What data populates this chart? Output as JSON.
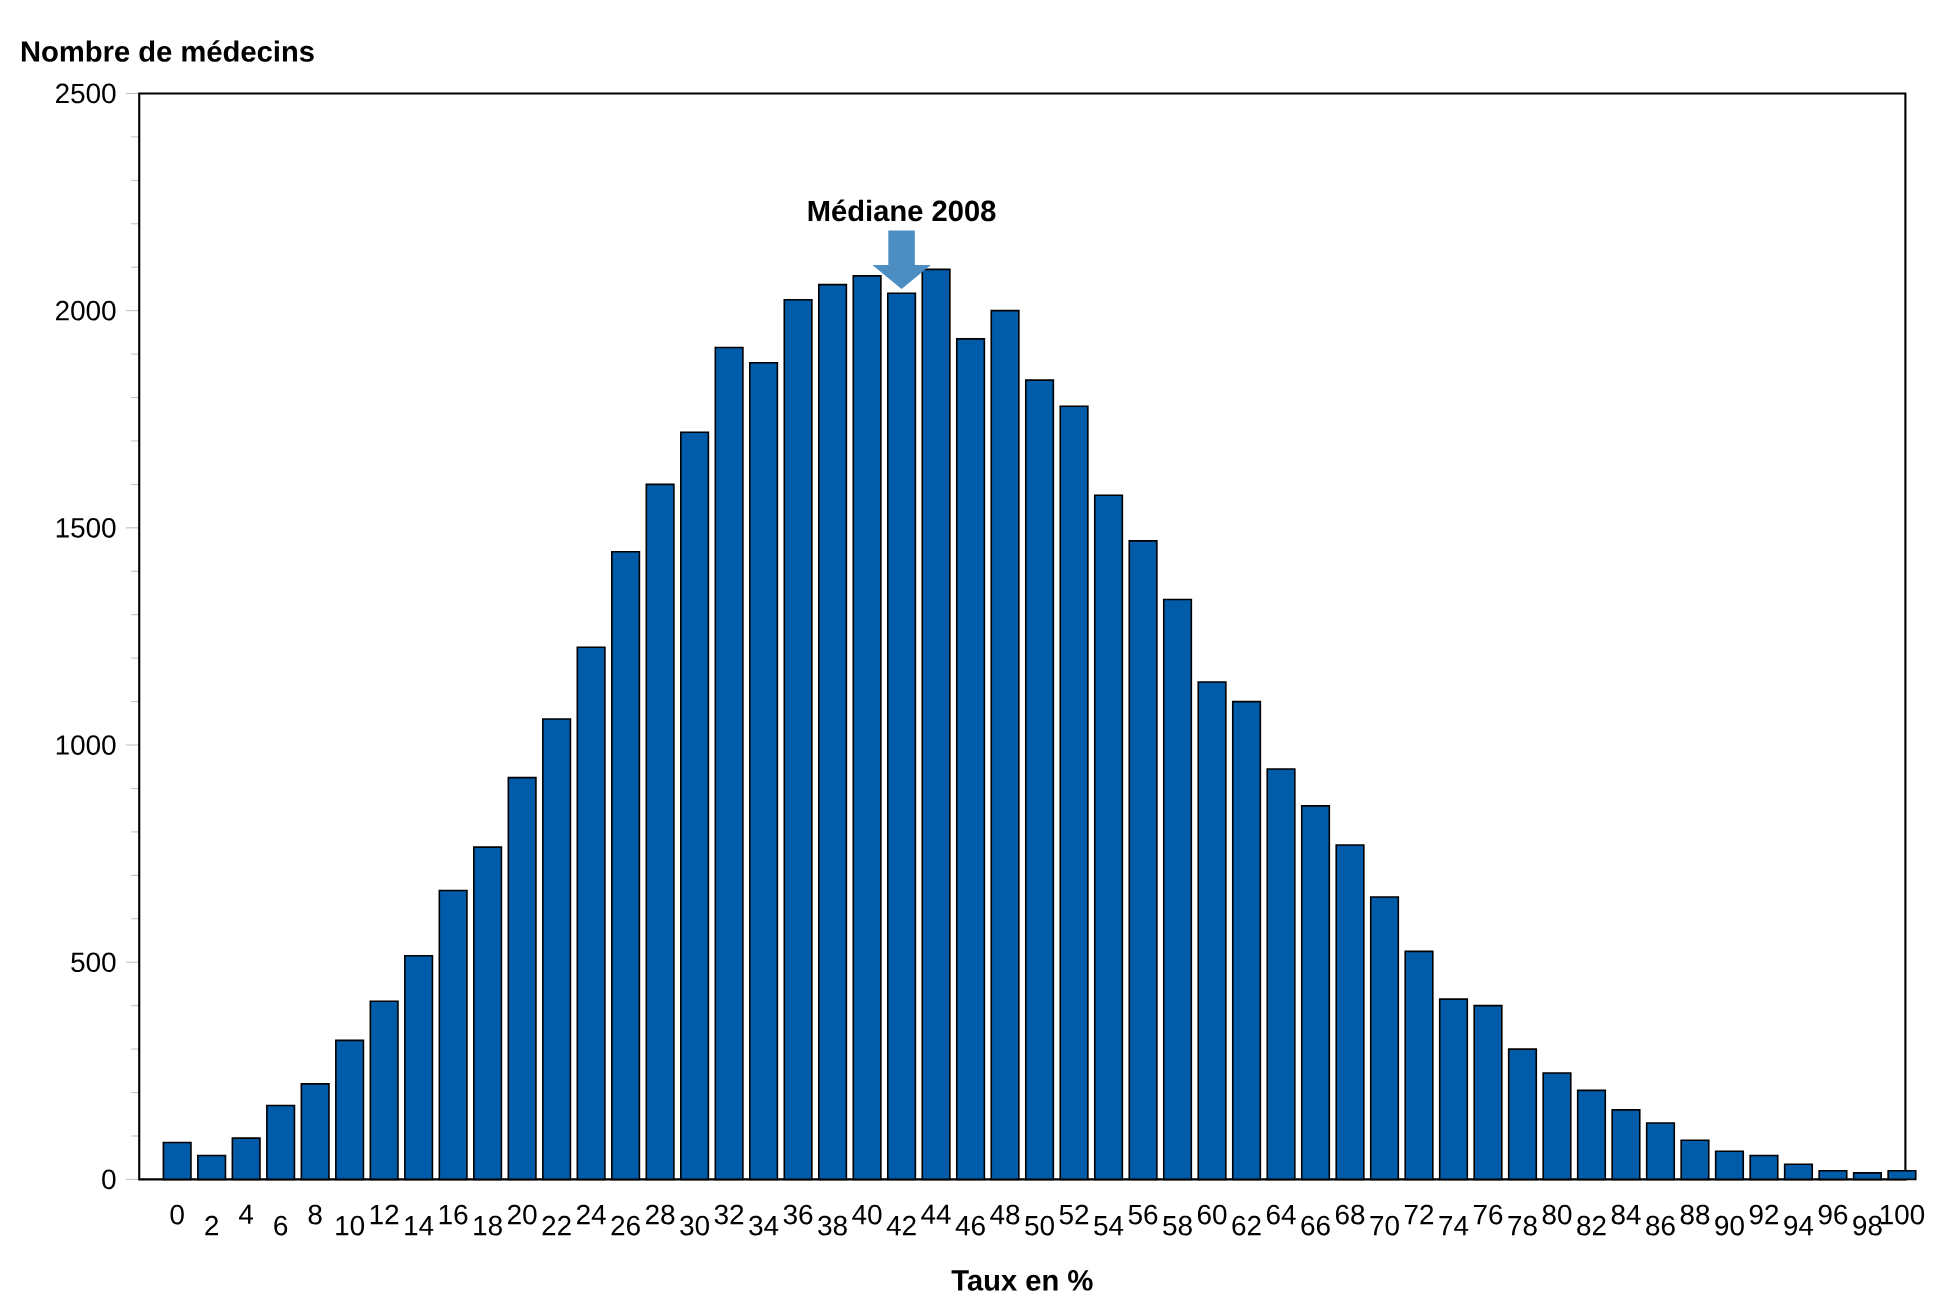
{
  "chart_data": {
    "type": "bar",
    "xlabel": "Taux en %",
    "ylabel": "Nombre de médecins",
    "categories": [
      "0",
      "2",
      "4",
      "6",
      "8",
      "10",
      "12",
      "14",
      "16",
      "18",
      "20",
      "22",
      "24",
      "26",
      "28",
      "30",
      "32",
      "34",
      "36",
      "38",
      "40",
      "42",
      "44",
      "46",
      "48",
      "50",
      "52",
      "54",
      "56",
      "58",
      "60",
      "62",
      "64",
      "66",
      "68",
      "70",
      "72",
      "74",
      "76",
      "78",
      "80",
      "82",
      "84",
      "86",
      "88",
      "90",
      "92",
      "94",
      "96",
      "98",
      "100"
    ],
    "values": [
      85,
      55,
      95,
      170,
      220,
      320,
      410,
      515,
      665,
      765,
      925,
      1060,
      1225,
      1445,
      1600,
      1720,
      1915,
      1880,
      2025,
      2060,
      2080,
      2040,
      2095,
      1935,
      2000,
      1840,
      1780,
      1575,
      1470,
      1335,
      1145,
      1100,
      945,
      860,
      770,
      650,
      525,
      415,
      400,
      300,
      245,
      205,
      160,
      130,
      90,
      65,
      55,
      35,
      20,
      15,
      20
    ],
    "color": "#005ca8",
    "ylim": [
      0,
      2500
    ],
    "yticks": [
      0,
      500,
      1000,
      1500,
      2000,
      2500
    ],
    "annotations": [
      {
        "text": "Médiane 2008",
        "x": "42",
        "y": 2050
      }
    ]
  }
}
